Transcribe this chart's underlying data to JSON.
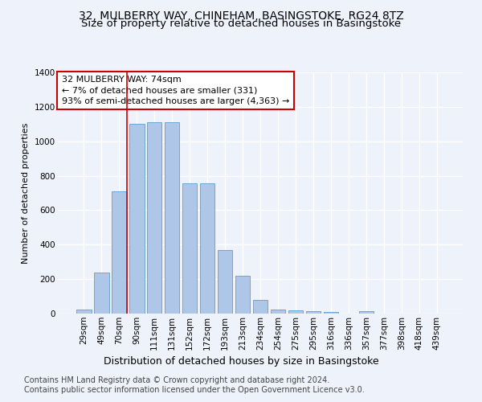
{
  "title": "32, MULBERRY WAY, CHINEHAM, BASINGSTOKE, RG24 8TZ",
  "subtitle": "Size of property relative to detached houses in Basingstoke",
  "xlabel": "Distribution of detached houses by size in Basingstoke",
  "ylabel": "Number of detached properties",
  "footnote1": "Contains HM Land Registry data © Crown copyright and database right 2024.",
  "footnote2": "Contains public sector information licensed under the Open Government Licence v3.0.",
  "bar_labels": [
    "29sqm",
    "49sqm",
    "70sqm",
    "90sqm",
    "111sqm",
    "131sqm",
    "152sqm",
    "172sqm",
    "193sqm",
    "213sqm",
    "234sqm",
    "254sqm",
    "275sqm",
    "295sqm",
    "316sqm",
    "336sqm",
    "357sqm",
    "377sqm",
    "398sqm",
    "418sqm",
    "439sqm"
  ],
  "bar_values": [
    25,
    240,
    710,
    1100,
    1110,
    1110,
    755,
    755,
    370,
    220,
    80,
    25,
    20,
    15,
    10,
    0,
    15,
    0,
    0,
    0,
    0
  ],
  "bar_color": "#aec6e8",
  "bar_edge_color": "#5a9fd4",
  "vline_pos": 2.45,
  "property_line_label": "32 MULBERRY WAY: 74sqm",
  "annotation_line1": "← 7% of detached houses are smaller (331)",
  "annotation_line2": "93% of semi-detached houses are larger (4,363) →",
  "annotation_box_color": "#ffffff",
  "annotation_box_edge_color": "#cc0000",
  "vline_color": "#cc0000",
  "bg_color": "#eef2fb",
  "plot_bg_color": "#eef2fb",
  "ylim": [
    0,
    1400
  ],
  "yticks": [
    0,
    200,
    400,
    600,
    800,
    1000,
    1200,
    1400
  ],
  "grid_color": "#ffffff",
  "title_fontsize": 10,
  "subtitle_fontsize": 9.5,
  "xlabel_fontsize": 9,
  "ylabel_fontsize": 8,
  "tick_fontsize": 7.5,
  "annot_fontsize": 8,
  "footnote_fontsize": 7
}
